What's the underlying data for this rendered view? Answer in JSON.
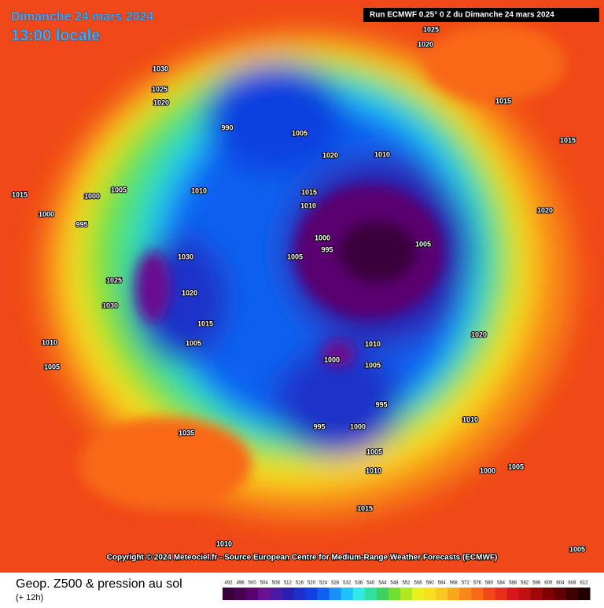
{
  "header": {
    "date": "Dimanche 24 mars 2024",
    "time": "13:00 locale",
    "run": "Run ECMWF 0.25° 0 Z du Dimanche 24 mars 2024"
  },
  "copyright": "Copyright © 2024 Meteociel.fr - Source European Centre for Medium-Range Weather Forecasts (ECMWF)",
  "footer": {
    "title": "Geop. Z500 & pression au sol",
    "lead": "(+ 12h)"
  },
  "colorbar": {
    "ticks": [
      492,
      496,
      500,
      504,
      508,
      512,
      516,
      520,
      524,
      528,
      532,
      536,
      540,
      544,
      548,
      552,
      556,
      560,
      564,
      568,
      572,
      576,
      580,
      584,
      588,
      592,
      596,
      600,
      604,
      608,
      612
    ],
    "colors": [
      "#3a003a",
      "#4a0050",
      "#5a0070",
      "#6a1090",
      "#4a1aa0",
      "#2a20b0",
      "#1a30c8",
      "#1040e0",
      "#1060f0",
      "#1890f8",
      "#20c0f8",
      "#30e8e8",
      "#30e0a0",
      "#40d060",
      "#70e030",
      "#b0e820",
      "#e8f020",
      "#f8e020",
      "#f8c820",
      "#f8a818",
      "#f88818",
      "#f86818",
      "#f04818",
      "#e83018",
      "#d81818",
      "#c01010",
      "#a00808",
      "#800000",
      "#600000",
      "#400000",
      "#200000"
    ]
  },
  "isobars": [
    "1025",
    "1020",
    "1030",
    "1025",
    "1020",
    "1015",
    "990",
    "1005",
    "1010",
    "1020",
    "1015",
    "1010",
    "1005",
    "1010",
    "1015",
    "1000",
    "1000",
    "995",
    "1030",
    "1005",
    "995",
    "1000",
    "1005",
    "1025",
    "1030",
    "1020",
    "1015",
    "1005",
    "1010",
    "1005",
    "1000",
    "1005",
    "1010",
    "995",
    "995",
    "1000",
    "1005",
    "1010",
    "1035",
    "1015",
    "1010",
    "1000",
    "1005",
    "1015",
    "1020",
    "1020",
    "1010",
    "1005"
  ]
}
